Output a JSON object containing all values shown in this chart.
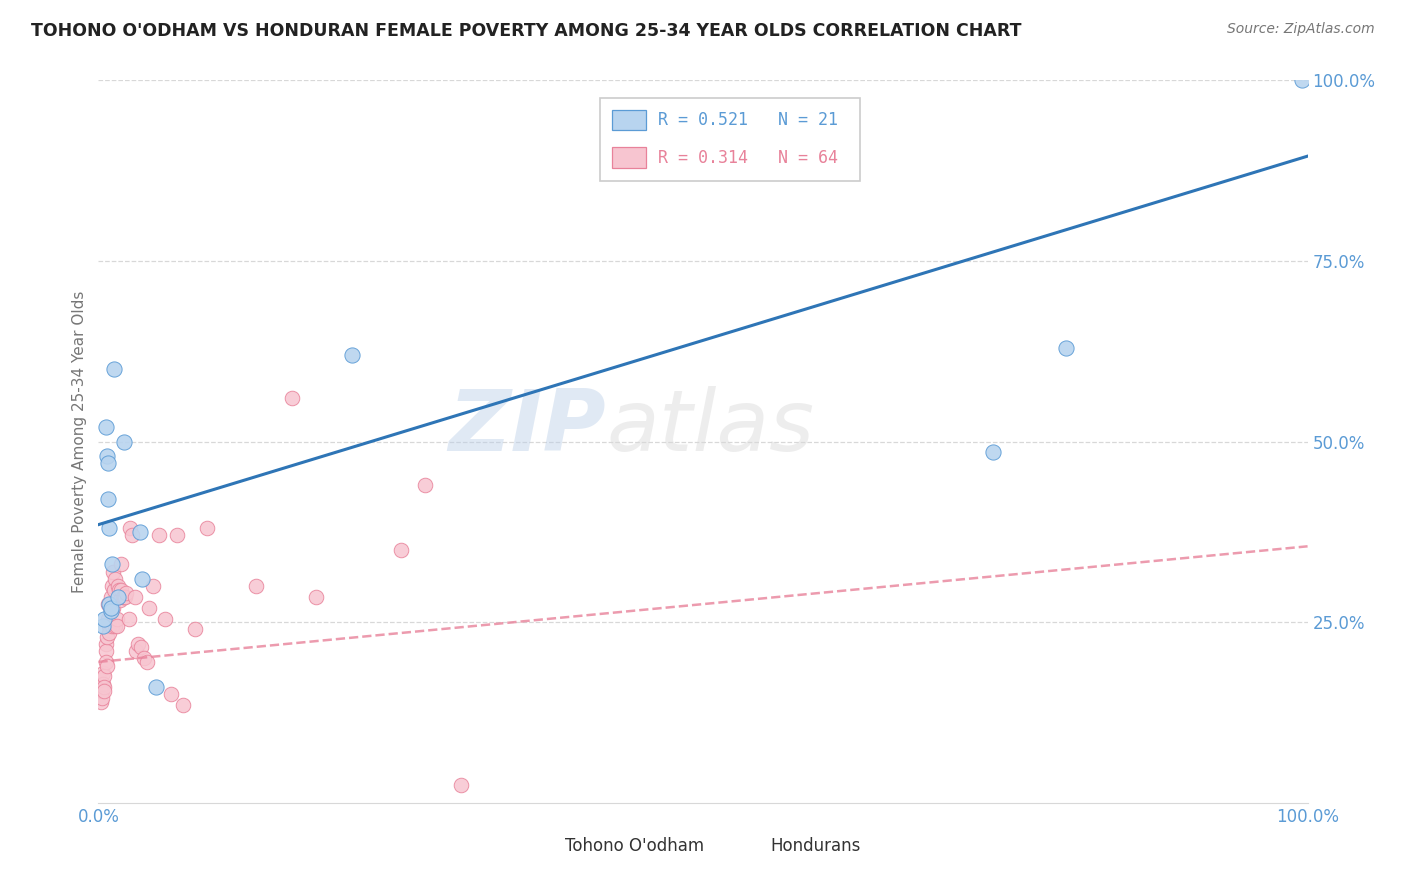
{
  "title": "TOHONO O'ODHAM VS HONDURAN FEMALE POVERTY AMONG 25-34 YEAR OLDS CORRELATION CHART",
  "source": "Source: ZipAtlas.com",
  "ylabel": "Female Poverty Among 25-34 Year Olds",
  "xlim": [
    0,
    1
  ],
  "ylim": [
    0,
    1
  ],
  "xtick_vals": [
    0,
    1.0
  ],
  "xtick_labels": [
    "0.0%",
    "100.0%"
  ],
  "ytick_vals": [
    0.25,
    0.5,
    0.75,
    1.0
  ],
  "ytick_labels": [
    "25.0%",
    "50.0%",
    "75.0%",
    "100.0%"
  ],
  "watermark_zip": "ZIP",
  "watermark_atlas": "atlas",
  "legend_blue_label": "Tohono O'odham",
  "legend_pink_label": "Hondurans",
  "R_blue": 0.521,
  "N_blue": 21,
  "R_pink": 0.314,
  "N_pink": 64,
  "blue_fill": "#B8D4EF",
  "blue_edge": "#5B9BD5",
  "pink_fill": "#F7C5D0",
  "pink_edge": "#E8829A",
  "blue_line_color": "#2E75B6",
  "pink_line_color": "#C9546A",
  "grid_color": "#D8D8D8",
  "tick_color": "#5B9BD5",
  "background_color": "#FFFFFF",
  "tohono_x": [
    0.004,
    0.005,
    0.006,
    0.021,
    0.007,
    0.008,
    0.008,
    0.009,
    0.009,
    0.01,
    0.01,
    0.011,
    0.013,
    0.016,
    0.034,
    0.036,
    0.048,
    0.21,
    0.74,
    0.8,
    0.995
  ],
  "tohono_y": [
    0.245,
    0.255,
    0.52,
    0.5,
    0.48,
    0.47,
    0.42,
    0.38,
    0.275,
    0.265,
    0.27,
    0.33,
    0.6,
    0.285,
    0.375,
    0.31,
    0.16,
    0.62,
    0.485,
    0.63,
    1.0
  ],
  "honduran_x": [
    0.001,
    0.002,
    0.002,
    0.003,
    0.003,
    0.003,
    0.004,
    0.004,
    0.005,
    0.005,
    0.005,
    0.006,
    0.006,
    0.006,
    0.007,
    0.007,
    0.008,
    0.008,
    0.009,
    0.009,
    0.01,
    0.01,
    0.011,
    0.011,
    0.012,
    0.012,
    0.013,
    0.014,
    0.014,
    0.015,
    0.015,
    0.016,
    0.017,
    0.018,
    0.019,
    0.019,
    0.02,
    0.021,
    0.022,
    0.023,
    0.025,
    0.026,
    0.028,
    0.03,
    0.031,
    0.033,
    0.035,
    0.038,
    0.04,
    0.042,
    0.045,
    0.05,
    0.055,
    0.06,
    0.065,
    0.07,
    0.08,
    0.09,
    0.13,
    0.16,
    0.18,
    0.25,
    0.27,
    0.3
  ],
  "honduran_y": [
    0.17,
    0.155,
    0.14,
    0.16,
    0.155,
    0.145,
    0.18,
    0.165,
    0.175,
    0.16,
    0.155,
    0.22,
    0.21,
    0.195,
    0.23,
    0.19,
    0.275,
    0.255,
    0.245,
    0.235,
    0.285,
    0.265,
    0.3,
    0.245,
    0.32,
    0.27,
    0.295,
    0.31,
    0.245,
    0.255,
    0.245,
    0.3,
    0.295,
    0.28,
    0.33,
    0.295,
    0.285,
    0.285,
    0.285,
    0.29,
    0.255,
    0.38,
    0.37,
    0.285,
    0.21,
    0.22,
    0.215,
    0.2,
    0.195,
    0.27,
    0.3,
    0.37,
    0.255,
    0.15,
    0.37,
    0.135,
    0.24,
    0.38,
    0.3,
    0.56,
    0.285,
    0.35,
    0.44,
    0.025
  ],
  "blue_line_start_y": 0.385,
  "blue_line_end_y": 0.895,
  "pink_line_start_y": 0.195,
  "pink_line_end_y": 0.355
}
